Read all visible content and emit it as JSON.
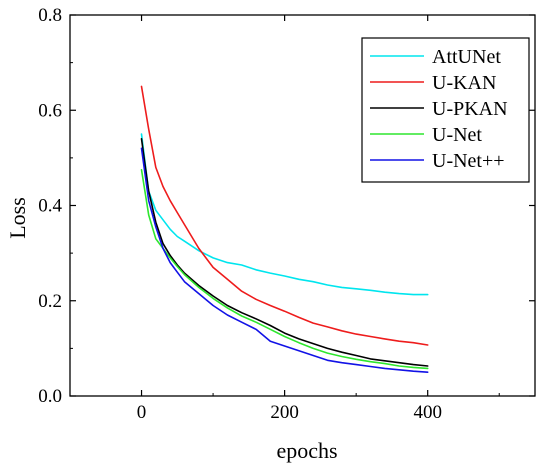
{
  "chart_data": {
    "type": "line",
    "title": "",
    "xlabel": "epochs",
    "ylabel": "Loss",
    "xlim": [
      -100,
      550
    ],
    "ylim": [
      0.0,
      0.8
    ],
    "xticks": [
      0,
      200,
      400
    ],
    "yticks": [
      0.0,
      0.2,
      0.4,
      0.6,
      0.8
    ],
    "xtick_labels": [
      "0",
      "200",
      "400"
    ],
    "ytick_labels": [
      "0.0",
      "0.2",
      "0.4",
      "0.6",
      "0.8"
    ],
    "grid": false,
    "legend_position": "top-right",
    "series": [
      {
        "name": "AttUNet",
        "color": "#00e5ee",
        "x": [
          0,
          10,
          20,
          30,
          40,
          50,
          60,
          80,
          100,
          120,
          140,
          160,
          180,
          200,
          220,
          240,
          260,
          280,
          300,
          320,
          340,
          360,
          380,
          400
        ],
        "y": [
          0.55,
          0.43,
          0.39,
          0.37,
          0.35,
          0.335,
          0.325,
          0.305,
          0.29,
          0.28,
          0.275,
          0.265,
          0.258,
          0.252,
          0.245,
          0.24,
          0.233,
          0.228,
          0.225,
          0.222,
          0.218,
          0.215,
          0.213,
          0.213
        ]
      },
      {
        "name": "U-KAN",
        "color": "#ee1c1c",
        "x": [
          0,
          10,
          20,
          30,
          40,
          50,
          60,
          80,
          100,
          120,
          140,
          160,
          180,
          200,
          220,
          240,
          260,
          280,
          300,
          320,
          340,
          360,
          380,
          400
        ],
        "y": [
          0.65,
          0.56,
          0.48,
          0.44,
          0.41,
          0.385,
          0.36,
          0.31,
          0.27,
          0.245,
          0.22,
          0.203,
          0.19,
          0.178,
          0.165,
          0.153,
          0.145,
          0.137,
          0.13,
          0.125,
          0.12,
          0.115,
          0.112,
          0.107
        ]
      },
      {
        "name": "U-PKAN",
        "color": "#000000",
        "x": [
          0,
          10,
          20,
          30,
          40,
          50,
          60,
          80,
          100,
          120,
          140,
          160,
          180,
          200,
          220,
          240,
          260,
          280,
          300,
          320,
          340,
          360,
          380,
          400
        ],
        "y": [
          0.54,
          0.43,
          0.365,
          0.32,
          0.295,
          0.275,
          0.258,
          0.232,
          0.21,
          0.19,
          0.175,
          0.162,
          0.148,
          0.132,
          0.12,
          0.11,
          0.1,
          0.092,
          0.085,
          0.078,
          0.074,
          0.07,
          0.066,
          0.063
        ]
      },
      {
        "name": "U-Net",
        "color": "#2ee62e",
        "x": [
          0,
          10,
          20,
          30,
          40,
          50,
          60,
          80,
          100,
          120,
          140,
          160,
          180,
          200,
          220,
          240,
          260,
          280,
          300,
          320,
          340,
          360,
          380,
          400
        ],
        "y": [
          0.475,
          0.38,
          0.33,
          0.31,
          0.29,
          0.272,
          0.255,
          0.228,
          0.205,
          0.185,
          0.168,
          0.155,
          0.14,
          0.125,
          0.112,
          0.1,
          0.09,
          0.083,
          0.077,
          0.072,
          0.068,
          0.063,
          0.06,
          0.058
        ]
      },
      {
        "name": "U-Net++",
        "color": "#1212e6",
        "x": [
          0,
          10,
          20,
          30,
          40,
          50,
          60,
          80,
          100,
          120,
          140,
          160,
          180,
          200,
          220,
          240,
          260,
          280,
          300,
          320,
          340,
          360,
          380,
          400
        ],
        "y": [
          0.52,
          0.41,
          0.355,
          0.31,
          0.28,
          0.26,
          0.24,
          0.215,
          0.19,
          0.17,
          0.155,
          0.14,
          0.115,
          0.105,
          0.095,
          0.085,
          0.075,
          0.07,
          0.066,
          0.062,
          0.058,
          0.055,
          0.052,
          0.05
        ]
      }
    ]
  }
}
